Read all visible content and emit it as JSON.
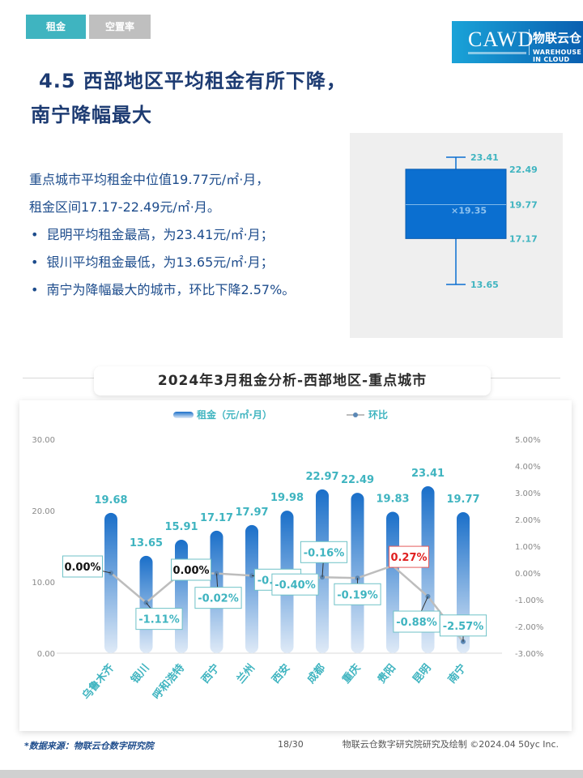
{
  "tabs": [
    {
      "label": "租金",
      "active": true
    },
    {
      "label": "空置率",
      "active": false
    }
  ],
  "logo": {
    "name": "CAWD",
    "cn": "物联云仓",
    "en": "WAREHOUSE IN CLOUD"
  },
  "title": {
    "line1": "4.5 西部地区平均租金有所下降，",
    "line2": "南宁降幅最大"
  },
  "summary": {
    "line1": "重点城市平均租金中位值19.77元/㎡·月，",
    "line2": "租金区间17.17-22.49元/㎡·月。",
    "bullets": [
      "昆明平均租金最高，为23.41元/㎡·月；",
      "银川平均租金最低，为13.65元/㎡·月；",
      "南宁为降幅最大的城市，环比下降2.57%。"
    ]
  },
  "boxplot": {
    "max": 23.41,
    "q3": 22.49,
    "median": 19.77,
    "mean": 19.35,
    "q1": 17.17,
    "min": 13.65,
    "labels": {
      "max": "23.41",
      "q3": "22.49",
      "median": "19.77",
      "mean": "×19.35",
      "q1": "17.17",
      "min": "13.65"
    },
    "color": "#0b6fd0"
  },
  "section_title": "2024年3月租金分析-西部地区-重点城市",
  "chart_data": {
    "type": "bar",
    "categories": [
      "乌鲁木齐",
      "银川",
      "呼和浩特",
      "西宁",
      "兰州",
      "西安",
      "成都",
      "重庆",
      "贵阳",
      "昆明",
      "南宁"
    ],
    "series": [
      {
        "name": "租金（元/㎡·月）",
        "type": "bar",
        "axis": "left",
        "values": [
          19.68,
          13.65,
          15.91,
          17.17,
          17.97,
          19.98,
          22.97,
          22.49,
          19.83,
          23.41,
          19.77
        ],
        "labels": [
          "19.68",
          "13.65",
          "15.91",
          "17.17",
          "17.97",
          "19.98",
          "22.97",
          "22.49",
          "19.83",
          "23.41",
          "19.77"
        ]
      },
      {
        "name": "环比",
        "type": "line",
        "axis": "right",
        "values": [
          0.0,
          -1.11,
          0.0,
          -0.02,
          -0.1,
          -0.4,
          -0.16,
          -0.19,
          0.27,
          -0.88,
          -2.57
        ],
        "labels": [
          "0.00%",
          "-1.11%",
          "0.00%",
          "-0.02%",
          "-0.10%",
          "-0.40%",
          "-0.16%",
          "-0.19%",
          "0.27%",
          "-0.88%",
          "-2.57%"
        ]
      }
    ],
    "y_left": {
      "min": 0,
      "max": 30,
      "ticks": [
        "0.00",
        "10.00",
        "20.00",
        "30.00"
      ]
    },
    "y_right": {
      "min": -3,
      "max": 5,
      "ticks": [
        "-3.00%",
        "-2.00%",
        "-1.00%",
        "0.00%",
        "1.00%",
        "2.00%",
        "3.00%",
        "4.00%",
        "5.00%"
      ]
    },
    "legend": "top",
    "colors": {
      "bar_top": "#1a6fc9",
      "bar_bottom": "#dfeaf7",
      "line": "#bdbdbd",
      "marker": "#5b88b5",
      "label": "#3fb4c0",
      "box_border": "#6fc2c7",
      "neutral_label": "#111111",
      "positive_label": "#e02020",
      "positive_border": "#e55b5b"
    }
  },
  "footer": {
    "source": "*数据来源：物联云仓数字研究院",
    "page": "18/30",
    "copyright": "物联云仓数字研究院研究及绘制  ©2024.04 50yc Inc."
  }
}
